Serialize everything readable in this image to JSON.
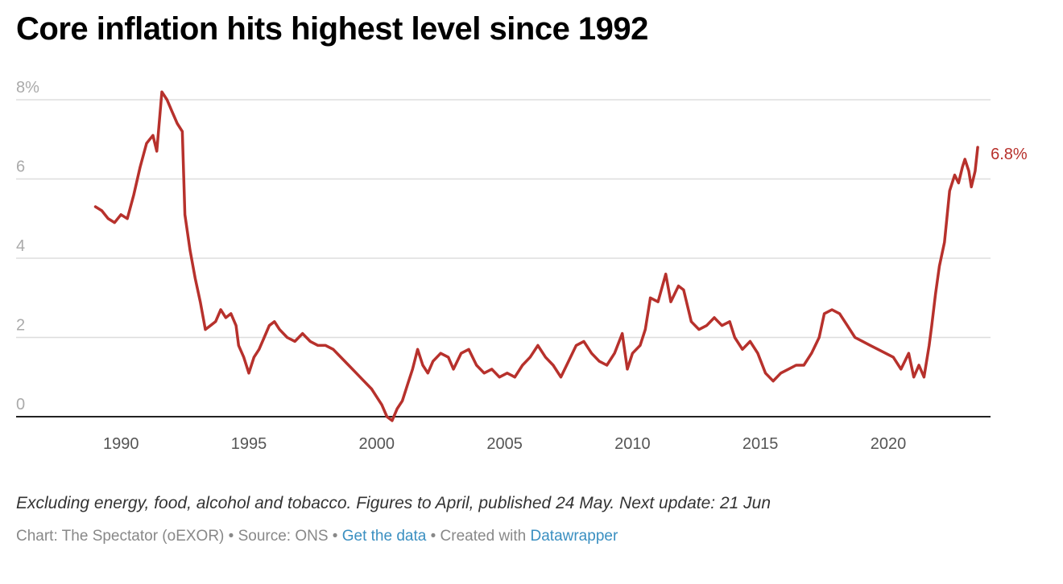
{
  "title": "Core inflation hits highest level since 1992",
  "notes": "Excluding energy, food, alcohol and tobacco. Figures to April, published 24 May. Next update: 21 Jun",
  "footer": {
    "chart_credit": "Chart: The Spectator (oEXOR)",
    "separator": " • ",
    "source": "Source: ONS",
    "get_data": "Get the data",
    "created_with": "Created with ",
    "tool": "Datawrapper"
  },
  "colors": {
    "line": "#b7312c",
    "grid": "#dddddd",
    "baseline": "#222222",
    "link": "#3a8fc1"
  },
  "chart_data": {
    "type": "line",
    "title": "Core inflation hits highest level since 1992",
    "xlabel": "",
    "ylabel": "",
    "xlim": [
      1985.9,
      2024.0
    ],
    "ylim": [
      0,
      8
    ],
    "y_ticks": [
      0,
      2,
      4,
      6,
      8
    ],
    "y_tick_labels": [
      "0",
      "2",
      "4",
      "6",
      "8%"
    ],
    "x_ticks": [
      1990,
      1995,
      2000,
      2005,
      2010,
      2015,
      2020
    ],
    "x_tick_labels": [
      "1990",
      "1995",
      "2000",
      "2005",
      "2010",
      "2015",
      "2020"
    ],
    "grid": true,
    "end_label": "6.8%",
    "series": [
      {
        "values": [
          [
            1989.0,
            5.3
          ],
          [
            1989.25,
            5.2
          ],
          [
            1989.5,
            5.0
          ],
          [
            1989.75,
            4.9
          ],
          [
            1990.0,
            5.1
          ],
          [
            1990.25,
            5.0
          ],
          [
            1990.5,
            5.6
          ],
          [
            1990.75,
            6.3
          ],
          [
            1991.0,
            6.9
          ],
          [
            1991.25,
            7.1
          ],
          [
            1991.4,
            6.7
          ],
          [
            1991.6,
            8.2
          ],
          [
            1991.8,
            8.0
          ],
          [
            1992.0,
            7.7
          ],
          [
            1992.2,
            7.4
          ],
          [
            1992.4,
            7.2
          ],
          [
            1992.5,
            5.1
          ],
          [
            1992.7,
            4.2
          ],
          [
            1992.9,
            3.5
          ],
          [
            1993.1,
            2.9
          ],
          [
            1993.3,
            2.2
          ],
          [
            1993.5,
            2.3
          ],
          [
            1993.7,
            2.4
          ],
          [
            1993.9,
            2.7
          ],
          [
            1994.1,
            2.5
          ],
          [
            1994.3,
            2.6
          ],
          [
            1994.5,
            2.3
          ],
          [
            1994.6,
            1.8
          ],
          [
            1994.8,
            1.5
          ],
          [
            1995.0,
            1.1
          ],
          [
            1995.2,
            1.5
          ],
          [
            1995.4,
            1.7
          ],
          [
            1995.6,
            2.0
          ],
          [
            1995.8,
            2.3
          ],
          [
            1996.0,
            2.4
          ],
          [
            1996.2,
            2.2
          ],
          [
            1996.5,
            2.0
          ],
          [
            1996.8,
            1.9
          ],
          [
            1997.1,
            2.1
          ],
          [
            1997.4,
            1.9
          ],
          [
            1997.7,
            1.8
          ],
          [
            1998.0,
            1.8
          ],
          [
            1998.3,
            1.7
          ],
          [
            1998.6,
            1.5
          ],
          [
            1998.9,
            1.3
          ],
          [
            1999.2,
            1.1
          ],
          [
            1999.5,
            0.9
          ],
          [
            1999.8,
            0.7
          ],
          [
            2000.0,
            0.5
          ],
          [
            2000.2,
            0.3
          ],
          [
            2000.4,
            0.0
          ],
          [
            2000.6,
            -0.1
          ],
          [
            2000.8,
            0.2
          ],
          [
            2001.0,
            0.4
          ],
          [
            2001.2,
            0.8
          ],
          [
            2001.4,
            1.2
          ],
          [
            2001.6,
            1.7
          ],
          [
            2001.8,
            1.3
          ],
          [
            2002.0,
            1.1
          ],
          [
            2002.2,
            1.4
          ],
          [
            2002.5,
            1.6
          ],
          [
            2002.8,
            1.5
          ],
          [
            2003.0,
            1.2
          ],
          [
            2003.3,
            1.6
          ],
          [
            2003.6,
            1.7
          ],
          [
            2003.9,
            1.3
          ],
          [
            2004.2,
            1.1
          ],
          [
            2004.5,
            1.2
          ],
          [
            2004.8,
            1.0
          ],
          [
            2005.1,
            1.1
          ],
          [
            2005.4,
            1.0
          ],
          [
            2005.7,
            1.3
          ],
          [
            2006.0,
            1.5
          ],
          [
            2006.3,
            1.8
          ],
          [
            2006.6,
            1.5
          ],
          [
            2006.9,
            1.3
          ],
          [
            2007.2,
            1.0
          ],
          [
            2007.5,
            1.4
          ],
          [
            2007.8,
            1.8
          ],
          [
            2008.1,
            1.9
          ],
          [
            2008.4,
            1.6
          ],
          [
            2008.7,
            1.4
          ],
          [
            2009.0,
            1.3
          ],
          [
            2009.3,
            1.6
          ],
          [
            2009.6,
            2.1
          ],
          [
            2009.8,
            1.2
          ],
          [
            2010.0,
            1.6
          ],
          [
            2010.3,
            1.8
          ],
          [
            2010.5,
            2.2
          ],
          [
            2010.7,
            3.0
          ],
          [
            2011.0,
            2.9
          ],
          [
            2011.3,
            3.6
          ],
          [
            2011.5,
            2.9
          ],
          [
            2011.8,
            3.3
          ],
          [
            2012.0,
            3.2
          ],
          [
            2012.3,
            2.4
          ],
          [
            2012.6,
            2.2
          ],
          [
            2012.9,
            2.3
          ],
          [
            2013.2,
            2.5
          ],
          [
            2013.5,
            2.3
          ],
          [
            2013.8,
            2.4
          ],
          [
            2014.0,
            2.0
          ],
          [
            2014.3,
            1.7
          ],
          [
            2014.6,
            1.9
          ],
          [
            2014.9,
            1.6
          ],
          [
            2015.2,
            1.1
          ],
          [
            2015.5,
            0.9
          ],
          [
            2015.8,
            1.1
          ],
          [
            2016.1,
            1.2
          ],
          [
            2016.4,
            1.3
          ],
          [
            2016.7,
            1.3
          ],
          [
            2017.0,
            1.6
          ],
          [
            2017.3,
            2.0
          ],
          [
            2017.5,
            2.6
          ],
          [
            2017.8,
            2.7
          ],
          [
            2018.1,
            2.6
          ],
          [
            2018.4,
            2.3
          ],
          [
            2018.7,
            2.0
          ],
          [
            2019.0,
            1.9
          ],
          [
            2019.3,
            1.8
          ],
          [
            2019.6,
            1.7
          ],
          [
            2019.9,
            1.6
          ],
          [
            2020.2,
            1.5
          ],
          [
            2020.5,
            1.2
          ],
          [
            2020.8,
            1.6
          ],
          [
            2021.0,
            1.0
          ],
          [
            2021.2,
            1.3
          ],
          [
            2021.4,
            1.0
          ],
          [
            2021.6,
            1.8
          ],
          [
            2021.7,
            2.3
          ],
          [
            2021.85,
            3.1
          ],
          [
            2022.0,
            3.8
          ],
          [
            2022.2,
            4.4
          ],
          [
            2022.4,
            5.7
          ],
          [
            2022.6,
            6.1
          ],
          [
            2022.75,
            5.9
          ],
          [
            2022.9,
            6.3
          ],
          [
            2023.0,
            6.5
          ],
          [
            2023.15,
            6.2
          ],
          [
            2023.25,
            5.8
          ],
          [
            2023.4,
            6.2
          ],
          [
            2023.5,
            6.8
          ]
        ]
      }
    ]
  }
}
